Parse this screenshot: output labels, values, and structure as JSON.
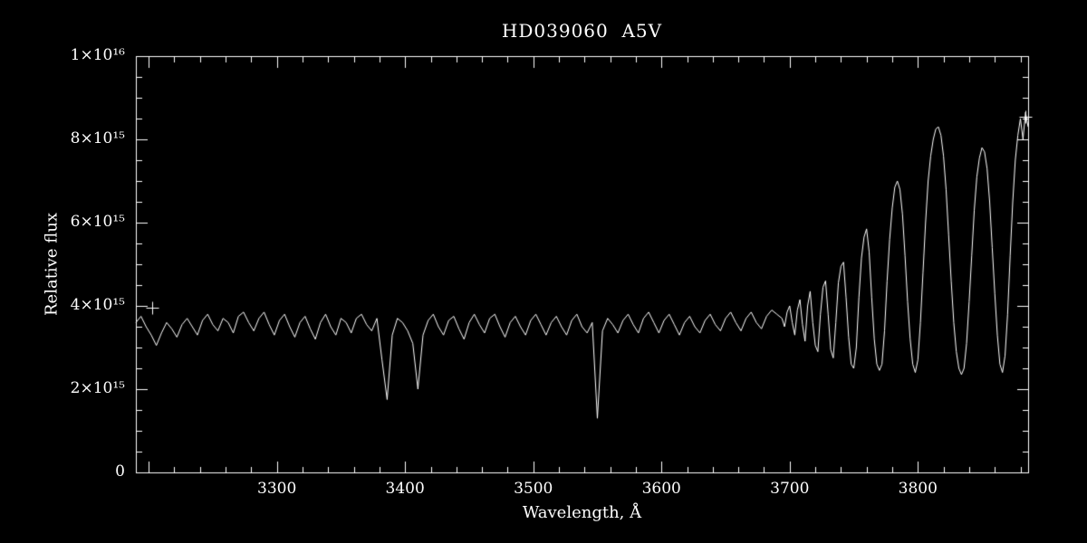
{
  "page": {
    "background": "#000000",
    "foreground": "#ffffff"
  },
  "chart_data": {
    "type": "line",
    "title": "HD039060  A5V",
    "xlabel": "Wavelength, Å",
    "ylabel": "Relative flux",
    "x_unit": "Angstrom",
    "y_values_scale": "1e15",
    "xlim": [
      3190,
      3886
    ],
    "ylim_1e15": [
      0,
      10
    ],
    "x_major_tick_step": 100,
    "x_minor_tick_step": 20,
    "y_major_tick_step_1e15": 2,
    "y_minor_tick_step_1e15": 0.5,
    "grid": false,
    "legend": "none",
    "background": "#000000",
    "axis_color": "#ffffff",
    "line_color": "#ffffff",
    "x_tick_labels": [
      {
        "value": 3300,
        "label": "3300"
      },
      {
        "value": 3400,
        "label": "3400"
      },
      {
        "value": 3500,
        "label": "3500"
      },
      {
        "value": 3600,
        "label": "3600"
      },
      {
        "value": 3700,
        "label": "3700"
      },
      {
        "value": 3800,
        "label": "3800"
      }
    ],
    "y_tick_labels": [
      {
        "value_1e15": 0,
        "label": "0"
      },
      {
        "value_1e15": 2,
        "label": "2×10¹⁵"
      },
      {
        "value_1e15": 4,
        "label": "4×10¹⁵"
      },
      {
        "value_1e15": 6,
        "label": "6×10¹⁵"
      },
      {
        "value_1e15": 8,
        "label": "8×10¹⁵"
      },
      {
        "value_1e15": 10,
        "label": "1×10¹⁶"
      }
    ],
    "notable_absorption_minima": [
      {
        "x": 3386,
        "min_flux_1e15": 1.75
      },
      {
        "x": 3410,
        "min_flux_1e15": 2.0
      },
      {
        "x": 3550,
        "min_flux_1e15": 1.3
      },
      {
        "x": 3722,
        "min_flux_1e15": 2.9
      },
      {
        "x": 3734,
        "min_flux_1e15": 2.75
      },
      {
        "x": 3750,
        "min_flux_1e15": 2.5
      },
      {
        "x": 3770,
        "min_flux_1e15": 2.45
      },
      {
        "x": 3798,
        "min_flux_1e15": 2.4
      },
      {
        "x": 3834,
        "min_flux_1e15": 2.35
      },
      {
        "x": 3866,
        "min_flux_1e15": 2.4
      }
    ],
    "cursor_markers": [
      {
        "x": 3203,
        "flux_1e15": 3.95
      },
      {
        "x": 3884,
        "flux_1e15": 8.55
      }
    ],
    "series": [
      {
        "name": "HD039060 spectrum",
        "segments": [
          {
            "x_start": 3190,
            "x_step": 4,
            "flux_1e15": [
              3.6,
              3.75,
              3.5,
              3.3,
              3.05,
              3.35,
              3.6,
              3.45,
              3.25,
              3.55,
              3.7,
              3.5,
              3.3,
              3.65,
              3.8,
              3.55,
              3.4,
              3.7,
              3.6,
              3.35,
              3.75,
              3.85,
              3.6,
              3.4,
              3.7,
              3.85,
              3.55,
              3.3,
              3.65,
              3.8,
              3.5,
              3.25,
              3.6,
              3.75,
              3.45,
              3.2,
              3.6,
              3.8,
              3.5,
              3.3,
              3.7,
              3.6,
              3.35,
              3.7,
              3.8,
              3.55,
              3.4,
              3.7,
              2.7,
              1.75,
              3.3,
              3.7,
              3.6,
              3.4,
              3.1,
              2.0,
              3.3,
              3.65,
              3.8,
              3.5,
              3.3,
              3.65,
              3.75,
              3.45,
              3.2,
              3.6,
              3.8,
              3.55,
              3.35,
              3.7,
              3.8,
              3.5,
              3.25,
              3.6,
              3.75,
              3.5,
              3.3,
              3.65,
              3.8,
              3.55,
              3.3,
              3.6,
              3.75,
              3.5,
              3.3,
              3.65,
              3.8,
              3.5,
              3.35,
              3.6,
              1.3,
              3.4,
              3.7,
              3.55,
              3.35,
              3.65,
              3.8,
              3.55,
              3.35,
              3.7,
              3.85,
              3.6,
              3.35,
              3.65,
              3.8,
              3.55,
              3.3,
              3.6,
              3.75,
              3.5,
              3.35,
              3.65,
              3.8,
              3.55,
              3.4,
              3.7,
              3.85,
              3.6,
              3.4,
              3.7,
              3.85,
              3.6,
              3.45,
              3.75,
              3.9,
              3.8
            ]
          },
          {
            "x_start": 3694,
            "x_step": 2,
            "flux_1e15": [
              3.7,
              3.5,
              3.85,
              4.0,
              3.6,
              3.3,
              3.9,
              4.15,
              3.55,
              3.15,
              4.0,
              4.35,
              3.6,
              3.05,
              2.9,
              3.8,
              4.45,
              4.6,
              3.8,
              2.95,
              2.75,
              3.6,
              4.55,
              4.95,
              5.05,
              4.2,
              3.25,
              2.6,
              2.5,
              3.0,
              4.2,
              5.15,
              5.65,
              5.85,
              5.3,
              4.2,
              3.2,
              2.6,
              2.45,
              2.6,
              3.4,
              4.6,
              5.6,
              6.35,
              6.85,
              7.0,
              6.8,
              6.2,
              5.2,
              4.1,
              3.2,
              2.6,
              2.4,
              2.7,
              3.6,
              4.8,
              6.0,
              7.0,
              7.6,
              8.0,
              8.25,
              8.3,
              8.1,
              7.6,
              6.8,
              5.7,
              4.6,
              3.6,
              2.9,
              2.5,
              2.35,
              2.5,
              3.1,
              4.1,
              5.2,
              6.3,
              7.1,
              7.55,
              7.8,
              7.7,
              7.3,
              6.5,
              5.4,
              4.3,
              3.3,
              2.6,
              2.4,
              2.8,
              3.8,
              5.2,
              6.5,
              7.5,
              8.1,
              8.5,
              8.0,
              8.65,
              8.3
            ]
          }
        ]
      }
    ]
  }
}
